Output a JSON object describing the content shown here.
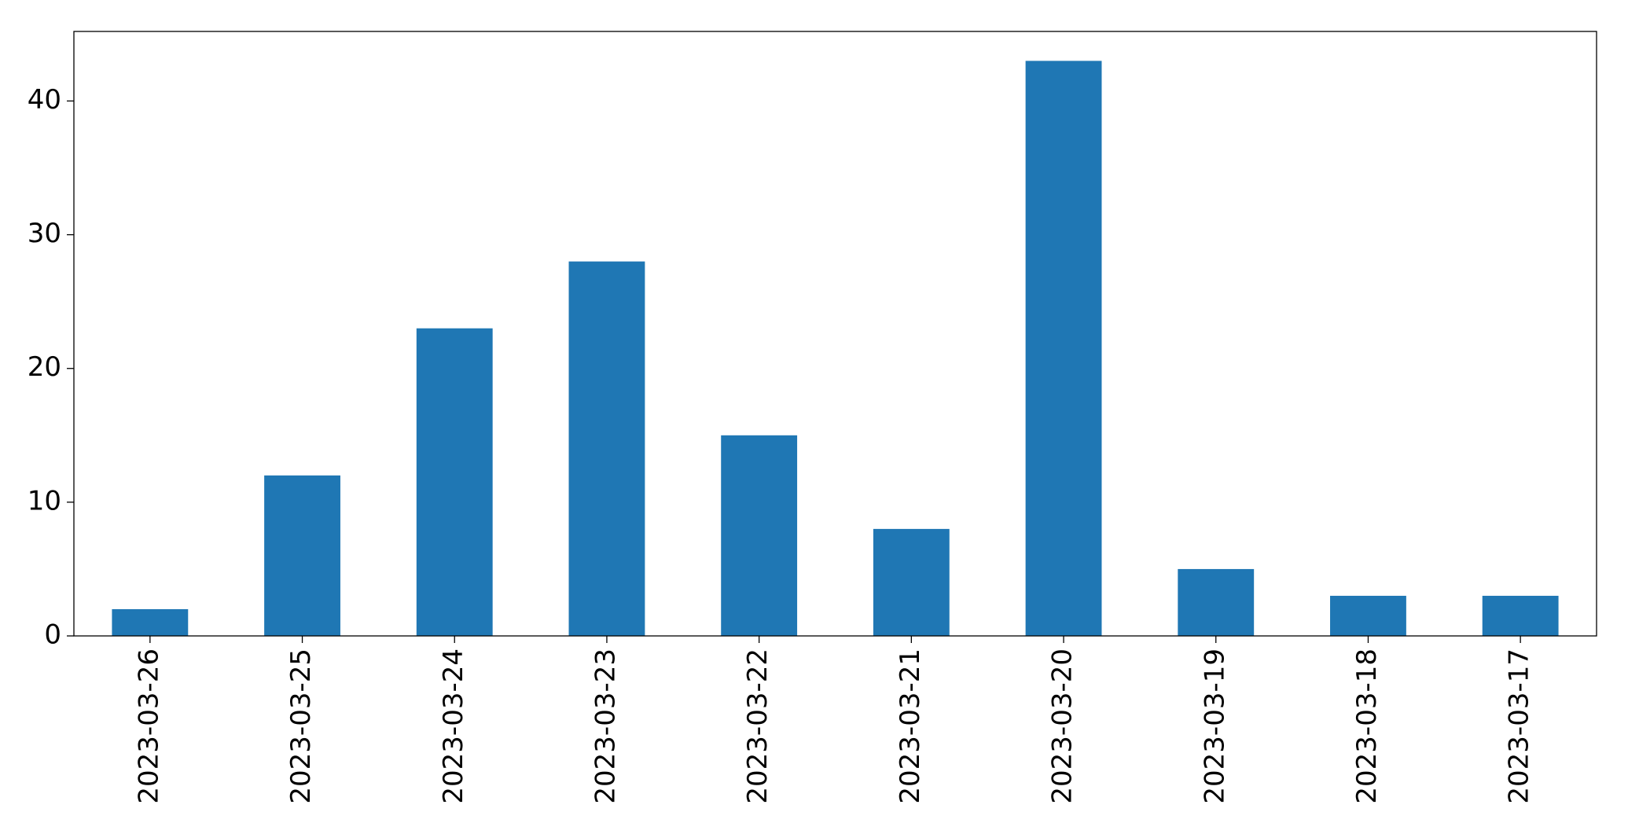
{
  "chart_data": {
    "type": "bar",
    "categories": [
      "2023-03-26",
      "2023-03-25",
      "2023-03-24",
      "2023-03-23",
      "2023-03-22",
      "2023-03-21",
      "2023-03-20",
      "2023-03-19",
      "2023-03-18",
      "2023-03-17"
    ],
    "values": [
      2,
      12,
      23,
      28,
      15,
      8,
      43,
      5,
      3,
      3
    ],
    "color": "#1f77b4",
    "ylim": [
      0,
      45.2
    ],
    "yticks": [
      0,
      10,
      20,
      30,
      40
    ],
    "grid": false
  }
}
